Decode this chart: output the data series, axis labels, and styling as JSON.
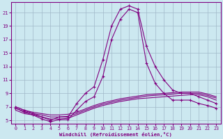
{
  "xlabel": "Windchill (Refroidissement éolien,°C)",
  "hours": [
    0,
    1,
    2,
    3,
    4,
    5,
    6,
    7,
    8,
    9,
    10,
    11,
    12,
    13,
    14,
    15,
    16,
    17,
    18,
    19,
    20,
    21,
    22,
    23
  ],
  "temp": [
    7.0,
    6.5,
    6.0,
    5.5,
    5.0,
    5.5,
    5.5,
    7.5,
    9.0,
    10.0,
    14.0,
    19.0,
    21.5,
    22.0,
    21.5,
    16.0,
    13.0,
    11.0,
    9.5,
    9.0,
    9.0,
    8.5,
    8.0,
    7.5
  ],
  "windchill": [
    6.8,
    6.2,
    5.8,
    5.2,
    4.8,
    5.1,
    5.1,
    6.5,
    7.8,
    8.5,
    11.5,
    17.0,
    20.0,
    21.5,
    21.0,
    13.5,
    10.5,
    9.0,
    8.0,
    8.0,
    8.0,
    7.5,
    7.2,
    6.8
  ],
  "line1": [
    6.5,
    6.0,
    5.8,
    5.5,
    5.2,
    5.2,
    5.3,
    5.8,
    6.3,
    6.8,
    7.2,
    7.5,
    7.8,
    8.0,
    8.2,
    8.3,
    8.4,
    8.5,
    8.6,
    8.7,
    8.8,
    8.8,
    8.5,
    8.0
  ],
  "line2": [
    6.8,
    6.3,
    6.0,
    5.8,
    5.5,
    5.5,
    5.6,
    6.0,
    6.5,
    7.0,
    7.4,
    7.7,
    8.0,
    8.2,
    8.4,
    8.6,
    8.7,
    8.8,
    8.9,
    9.0,
    9.0,
    9.0,
    8.7,
    8.3
  ],
  "line3": [
    7.0,
    6.5,
    6.2,
    6.0,
    5.8,
    5.8,
    5.9,
    6.2,
    6.7,
    7.2,
    7.6,
    7.9,
    8.2,
    8.4,
    8.6,
    8.8,
    8.9,
    9.0,
    9.1,
    9.2,
    9.2,
    9.2,
    8.9,
    8.5
  ],
  "line_color": "#800080",
  "bg_color": "#cce8f0",
  "grid_color": "#a0b8c8",
  "ylim": [
    4.5,
    22.5
  ],
  "yticks": [
    5,
    7,
    9,
    11,
    13,
    15,
    17,
    19,
    21
  ],
  "xlim": [
    -0.5,
    23.5
  ],
  "xticks": [
    0,
    1,
    2,
    3,
    4,
    5,
    6,
    7,
    8,
    9,
    10,
    11,
    12,
    13,
    14,
    15,
    16,
    17,
    18,
    19,
    20,
    21,
    22,
    23
  ]
}
